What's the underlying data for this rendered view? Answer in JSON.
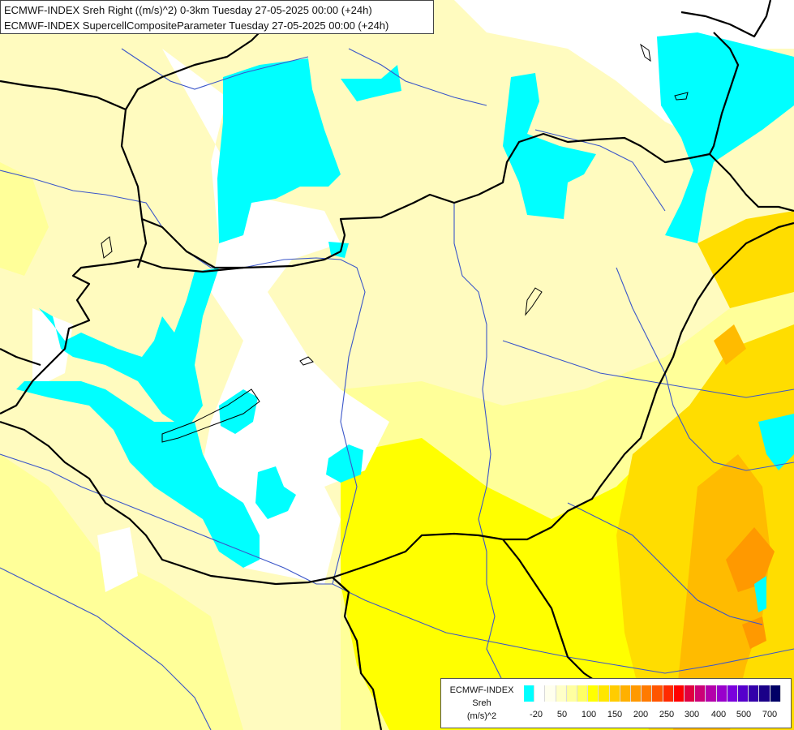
{
  "title": {
    "line1": "ECMWF-INDEX Sreh Right ((m/s)^2) 0-3km Tuesday 27-05-2025 00:00 (+24h)",
    "line2": "ECMWF-INDEX SupercellCompositeParameter Tuesday 27-05-2025 00:00 (+24h)"
  },
  "legend": {
    "line1": "ECMWF-INDEX",
    "line2": "Sreh",
    "line3": "(m/s)^2",
    "colors": [
      "#00ffff",
      "#ffffff",
      "#ffffee",
      "#ffffc8",
      "#ffffa0",
      "#ffff66",
      "#ffff00",
      "#ffe600",
      "#ffcc00",
      "#ffb000",
      "#ff9900",
      "#ff7a00",
      "#ff5500",
      "#ff2a00",
      "#ff0000",
      "#e00040",
      "#cc0077",
      "#b400aa",
      "#9900cc",
      "#7a00dd",
      "#5500cc",
      "#3300aa",
      "#1a0088",
      "#000066"
    ],
    "ticks": [
      "-20",
      "50",
      "100",
      "150",
      "200",
      "250",
      "300",
      "400",
      "500",
      "700"
    ]
  },
  "colors": {
    "cyan": "#00ffff",
    "white": "#ffffff",
    "pale_yellow": "#fffbbf",
    "light_yellow": "#ffff99",
    "yellow": "#ffff00",
    "gold": "#ffdd00",
    "orange": "#ffbb00",
    "dark_orange": "#ff9900",
    "border": "#000000",
    "river": "#3b56c9"
  }
}
